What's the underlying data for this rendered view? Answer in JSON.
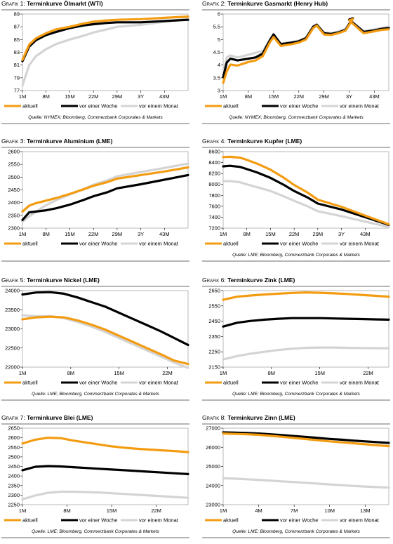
{
  "legend": [
    "aktuell",
    "vor einer Woche",
    "vor einem Monat"
  ],
  "colors": {
    "aktuell": "#f39c12",
    "vor_einer_woche": "#000000",
    "vor_einem_monat": "#d4d4d4"
  },
  "chart_data": [
    {
      "type": "line",
      "title_prefix": "Grafik 1:",
      "title": "Terminkurve Ölmarkt (WTI)",
      "source": "Quelle: NYMEX; Bloomberg, Commerzbank Corporates & Markets",
      "xticks": [
        "1M",
        "8M",
        "15M",
        "22M",
        "29M",
        "3Y",
        "43M"
      ],
      "yticks": [
        77,
        79,
        81,
        83,
        85,
        87,
        89
      ],
      "ylim": [
        77,
        89
      ],
      "x": [
        "1M",
        "3M",
        "5M",
        "8M",
        "11M",
        "15M",
        "19M",
        "22M",
        "26M",
        "29M",
        "3Y",
        "43M",
        "50M"
      ],
      "series": [
        {
          "name": "aktuell",
          "values": [
            81.8,
            84.2,
            85.2,
            86.0,
            86.6,
            87.0,
            87.5,
            87.8,
            88.0,
            88.1,
            88.2,
            88.4,
            88.6
          ]
        },
        {
          "name": "vor einer Woche",
          "values": [
            81.6,
            83.9,
            84.9,
            85.7,
            86.2,
            86.8,
            87.2,
            87.4,
            87.6,
            87.7,
            87.7,
            87.9,
            88.1
          ]
        },
        {
          "name": "vor einem Monat",
          "values": [
            77.8,
            81.0,
            82.4,
            83.5,
            84.3,
            85.0,
            85.6,
            86.1,
            86.6,
            87.0,
            87.3,
            87.8,
            88.3
          ]
        }
      ]
    },
    {
      "type": "line",
      "title_prefix": "Grafik 2:",
      "title": "Terminkurve Gasmarkt (Henry Hub)",
      "source": "Quelle: NYMEX; Bloomberg, Commerzbank Corporates & Markets",
      "xticks": [
        "1M",
        "8M",
        "15M",
        "22M",
        "29M",
        "3Y",
        "43M"
      ],
      "yticks": [
        3.0,
        3.5,
        4.0,
        4.5,
        5.0,
        5.5,
        6.0
      ],
      "ylim": [
        3.0,
        6.0
      ],
      "x": [
        "1M",
        "2M",
        "3M",
        "5M",
        "8M",
        "10M",
        "12M",
        "14M",
        "15M",
        "17M",
        "20M",
        "22M",
        "24M",
        "26M",
        "27M",
        "29M",
        "31M",
        "33M",
        "35M",
        "37M",
        "3Y",
        "40M",
        "43M",
        "45M",
        "47M"
      ],
      "series": [
        {
          "name": "aktuell",
          "values": [
            3.3,
            3.75,
            4.02,
            3.98,
            4.12,
            4.18,
            4.35,
            4.9,
            5.1,
            4.75,
            4.82,
            4.88,
            5.0,
            5.45,
            5.55,
            5.2,
            5.18,
            5.25,
            5.35,
            5.8,
            5.75,
            5.25,
            5.32,
            5.38,
            5.4
          ]
        },
        {
          "name": "vor einer Woche",
          "values": [
            3.52,
            4.1,
            4.25,
            4.18,
            4.25,
            4.3,
            4.45,
            4.98,
            5.2,
            4.82,
            4.88,
            4.93,
            5.05,
            5.5,
            5.58,
            5.25,
            5.22,
            5.28,
            5.38,
            5.83,
            5.78,
            5.3,
            5.36,
            5.42,
            5.45
          ]
        },
        {
          "name": "vor einem Monat",
          "values": [
            3.62,
            4.3,
            4.38,
            4.3,
            4.4,
            4.48,
            4.55,
            5.0,
            5.22,
            4.85,
            4.9,
            4.96,
            5.08,
            5.52,
            5.6,
            5.28,
            5.25,
            5.32,
            5.42,
            5.85,
            5.8,
            5.33,
            5.4,
            5.45,
            5.5
          ]
        }
      ]
    },
    {
      "type": "line",
      "title_prefix": "Grafik 3:",
      "title": "Terminkurve Aluminium (LME)",
      "source": "",
      "xticks": [
        "1M",
        "8M",
        "15M",
        "22M",
        "29M",
        "3Y",
        "43M"
      ],
      "yticks": [
        2300,
        2350,
        2400,
        2450,
        2500,
        2550,
        2600
      ],
      "ylim": [
        2300,
        2600
      ],
      "x": [
        "1M",
        "3M",
        "5M",
        "8M",
        "11M",
        "15M",
        "19M",
        "22M",
        "26M",
        "29M",
        "3Y",
        "43M",
        "50M"
      ],
      "series": [
        {
          "name": "aktuell",
          "values": [
            2365,
            2388,
            2398,
            2408,
            2418,
            2434,
            2452,
            2466,
            2480,
            2494,
            2508,
            2522,
            2538
          ]
        },
        {
          "name": "vor einer Woche",
          "values": [
            2332,
            2362,
            2365,
            2370,
            2378,
            2392,
            2410,
            2425,
            2440,
            2456,
            2472,
            2490,
            2508
          ]
        },
        {
          "name": "vor einem Monat",
          "values": [
            2325,
            2346,
            2365,
            2390,
            2410,
            2432,
            2452,
            2470,
            2487,
            2503,
            2520,
            2536,
            2553
          ]
        }
      ]
    },
    {
      "type": "line",
      "title_prefix": "Grafik 4:",
      "title": "Terminkurve Kupfer (LME)",
      "source": "Quelle: LME; Bloomberg, Commerzbank Corporates & Markets",
      "xticks": [
        "1M",
        "8M",
        "15M",
        "22M",
        "29M",
        "3Y",
        "43M"
      ],
      "yticks": [
        7200,
        7400,
        7600,
        7800,
        8000,
        8200,
        8400,
        8600
      ],
      "ylim": [
        7200,
        8600
      ],
      "x": [
        "1M",
        "3M",
        "6M",
        "8M",
        "11M",
        "15M",
        "19M",
        "22M",
        "26M",
        "29M",
        "3Y",
        "43M",
        "50M"
      ],
      "series": [
        {
          "name": "aktuell",
          "values": [
            8500,
            8505,
            8490,
            8450,
            8380,
            8270,
            8120,
            7990,
            7850,
            7720,
            7590,
            7430,
            7270
          ]
        },
        {
          "name": "vor einer Woche",
          "values": [
            8330,
            8340,
            8320,
            8280,
            8220,
            8120,
            7990,
            7880,
            7760,
            7650,
            7540,
            7400,
            7260
          ]
        },
        {
          "name": "vor einem Monat",
          "values": [
            8060,
            8060,
            8040,
            8000,
            7950,
            7880,
            7780,
            7700,
            7600,
            7510,
            7420,
            7320,
            7220
          ]
        }
      ]
    },
    {
      "type": "line",
      "title_prefix": "Grafik 5:",
      "title": "Terminkurve Nickel (LME)",
      "source": "Quelle: LME; Bloomberg, Commerzbank Corporates & Markets",
      "xticks": [
        "1M",
        "8M",
        "15M",
        "22M"
      ],
      "yticks": [
        22000,
        22500,
        23000,
        23500,
        24000
      ],
      "ylim": [
        22000,
        24000
      ],
      "x": [
        "1M",
        "3M",
        "5M",
        "7M",
        "9M",
        "11M",
        "13M",
        "15M",
        "17M",
        "19M",
        "21M",
        "23M",
        "25M"
      ],
      "series": [
        {
          "name": "aktuell",
          "values": [
            23250,
            23300,
            23320,
            23300,
            23220,
            23110,
            22980,
            22820,
            22660,
            22500,
            22340,
            22170,
            22080
          ]
        },
        {
          "name": "vor einer Woche",
          "values": [
            23900,
            23950,
            23960,
            23920,
            23820,
            23700,
            23580,
            23420,
            23260,
            23100,
            22940,
            22760,
            22580
          ]
        },
        {
          "name": "vor einem Monat",
          "values": [
            23350,
            23330,
            23330,
            23280,
            23180,
            23060,
            22920,
            22760,
            22600,
            22440,
            22280,
            22120,
            21980
          ]
        }
      ]
    },
    {
      "type": "line",
      "title_prefix": "Grafik 6:",
      "title": "Terminkurve Zink (LME)",
      "source": "Quelle: LME; Bloomberg, Commerzbank Corporates & Markets",
      "xticks": [
        "1M",
        "8M",
        "15M",
        "22M"
      ],
      "yticks": [
        2150,
        2250,
        2350,
        2450,
        2550,
        2650
      ],
      "ylim": [
        2150,
        2650
      ],
      "x": [
        "1M",
        "3M",
        "5M",
        "7M",
        "9M",
        "11M",
        "13M",
        "15M",
        "17M",
        "19M",
        "21M",
        "23M",
        "25M"
      ],
      "series": [
        {
          "name": "aktuell",
          "values": [
            2590,
            2610,
            2618,
            2625,
            2630,
            2635,
            2638,
            2636,
            2632,
            2628,
            2622,
            2616,
            2610
          ]
        },
        {
          "name": "vor einer Woche",
          "values": [
            2415,
            2440,
            2452,
            2460,
            2466,
            2470,
            2470,
            2470,
            2468,
            2466,
            2464,
            2462,
            2460
          ]
        },
        {
          "name": "vor einem Monat",
          "values": [
            2200,
            2222,
            2238,
            2250,
            2262,
            2270,
            2276,
            2278,
            2278,
            2276,
            2275,
            2274,
            2273
          ]
        }
      ]
    },
    {
      "type": "line",
      "title_prefix": "Grafik 7:",
      "title": "Terminkurve Blei (LME)",
      "source": "Quelle: LME; Bloomberg, Commerzbank Corporates & Markets",
      "xticks": [
        "1M",
        "8M",
        "15M",
        "22M"
      ],
      "yticks": [
        2250,
        2300,
        2350,
        2400,
        2450,
        2500,
        2550,
        2600,
        2650
      ],
      "ylim": [
        2250,
        2650
      ],
      "x": [
        "1M",
        "3M",
        "5M",
        "7M",
        "9M",
        "11M",
        "13M",
        "15M",
        "17M",
        "19M",
        "21M",
        "23M",
        "25M",
        "27M"
      ],
      "series": [
        {
          "name": "aktuell",
          "values": [
            2570,
            2590,
            2600,
            2598,
            2585,
            2575,
            2565,
            2555,
            2548,
            2542,
            2538,
            2534,
            2530,
            2525
          ]
        },
        {
          "name": "vor einer Woche",
          "values": [
            2430,
            2448,
            2452,
            2450,
            2446,
            2442,
            2438,
            2434,
            2430,
            2426,
            2422,
            2418,
            2414,
            2410
          ]
        },
        {
          "name": "vor einem Monat",
          "values": [
            2278,
            2298,
            2312,
            2318,
            2318,
            2316,
            2314,
            2310,
            2306,
            2302,
            2298,
            2294,
            2290,
            2286
          ]
        }
      ]
    },
    {
      "type": "line",
      "title_prefix": "Grafik 8:",
      "title": "Terminkurve Zinn (LME)",
      "source": "Quelle: LME; Bloomberg, Commerzbank Corporates & Markets",
      "xticks": [
        "1M",
        "4M",
        "7M",
        "10M",
        "13M"
      ],
      "yticks": [
        23000,
        24000,
        25000,
        26000,
        27000
      ],
      "ylim": [
        23000,
        27000
      ],
      "x": [
        "1M",
        "2M",
        "3M",
        "4M",
        "5M",
        "6M",
        "7M",
        "8M",
        "9M",
        "10M",
        "11M",
        "12M",
        "13M",
        "14M",
        "15M"
      ],
      "series": [
        {
          "name": "aktuell",
          "values": [
            26720,
            26700,
            26680,
            26650,
            26600,
            26550,
            26490,
            26430,
            26370,
            26310,
            26260,
            26210,
            26160,
            26110,
            26060
          ]
        },
        {
          "name": "vor einer Woche",
          "values": [
            26780,
            26770,
            26750,
            26720,
            26680,
            26640,
            26590,
            26540,
            26490,
            26440,
            26400,
            26350,
            26310,
            26270,
            26230
          ]
        },
        {
          "name": "vor einem Monat",
          "values": [
            24380,
            24360,
            24330,
            24300,
            24260,
            24220,
            24180,
            24140,
            24100,
            24060,
            24020,
            23980,
            23950,
            23920,
            23890
          ]
        }
      ]
    }
  ]
}
